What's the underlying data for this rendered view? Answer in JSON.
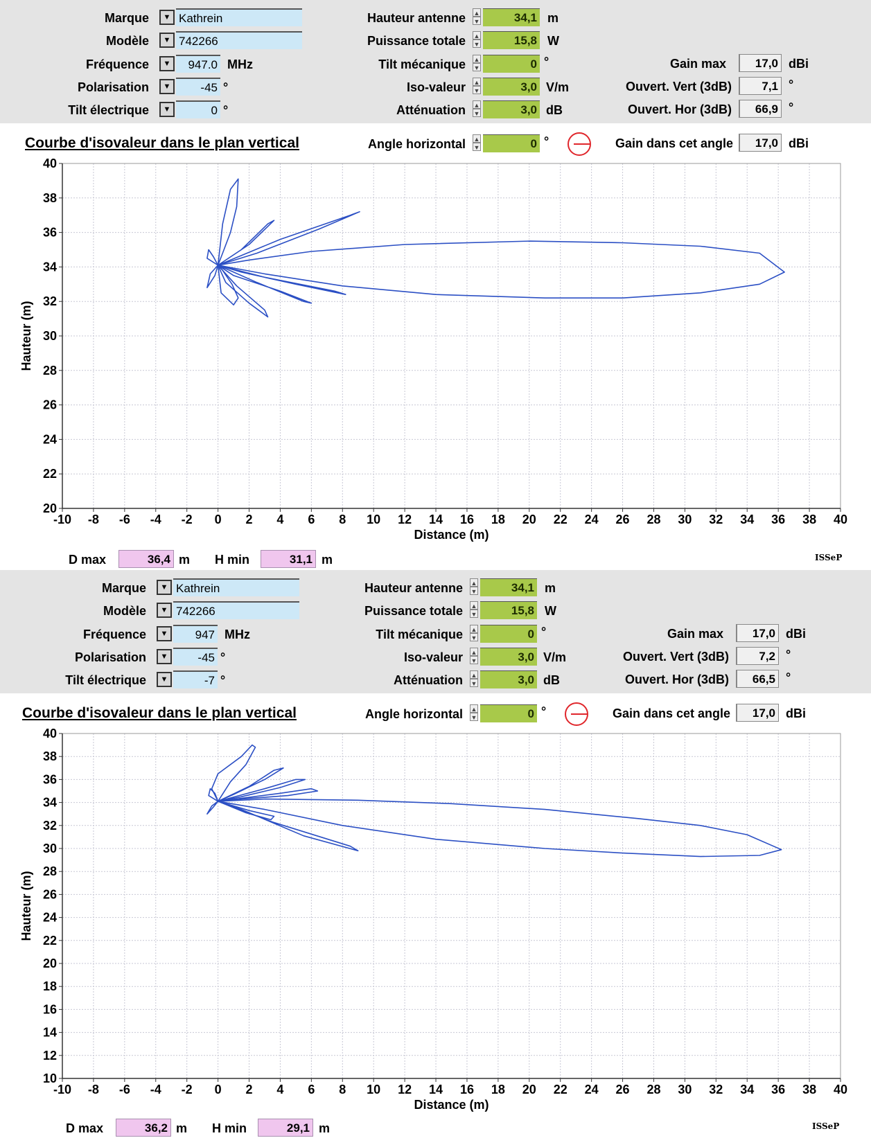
{
  "panels": [
    {
      "inputs": {
        "marque_label": "Marque",
        "marque": "Kathrein",
        "modele_label": "Modèle",
        "modele": "742266",
        "frequence_label": "Fréquence",
        "frequence": "947.0",
        "frequence_unit": "MHz",
        "polarisation_label": "Polarisation",
        "polarisation": "-45",
        "polarisation_unit": "°",
        "tilt_elec_label": "Tilt électrique",
        "tilt_elec": "0",
        "tilt_elec_unit": "°",
        "hauteur_label": "Hauteur antenne",
        "hauteur": "34,1",
        "hauteur_unit": "m",
        "puissance_label": "Puissance totale",
        "puissance": "15,8",
        "puissance_unit": "W",
        "tilt_meca_label": "Tilt mécanique",
        "tilt_meca": "0",
        "tilt_meca_unit": "°",
        "iso_label": "Iso-valeur",
        "iso": "3,0",
        "iso_unit": "V/m",
        "att_label": "Atténuation",
        "att": "3,0",
        "att_unit": "dB",
        "gain_max_label": "Gain max",
        "gain_max": "17,0",
        "gain_max_unit": "dBi",
        "ouv_vert_label": "Ouvert. Vert (3dB)",
        "ouv_vert": "7,1",
        "ouv_vert_unit": "°",
        "ouv_hor_label": "Ouvert. Hor (3dB)",
        "ouv_hor": "66,9",
        "ouv_hor_unit": "°"
      },
      "header": {
        "title": "Courbe d'isovaleur dans le plan vertical",
        "angle_label": "Angle horizontal",
        "angle": "0",
        "angle_unit": "°",
        "gain_angle_label": "Gain dans cet angle",
        "gain_angle": "17,0",
        "gain_angle_unit": "dBi"
      },
      "footer": {
        "dmax_label": "D max",
        "dmax": "36,4",
        "dmax_unit": "m",
        "hmin_label": "H min",
        "hmin": "31,1",
        "hmin_unit": "m",
        "brand": "ISSeP"
      }
    },
    {
      "inputs": {
        "marque_label": "Marque",
        "marque": "Kathrein",
        "modele_label": "Modèle",
        "modele": "742266",
        "frequence_label": "Fréquence",
        "frequence": "947",
        "frequence_unit": "MHz",
        "polarisation_label": "Polarisation",
        "polarisation": "-45",
        "polarisation_unit": "°",
        "tilt_elec_label": "Tilt électrique",
        "tilt_elec": "-7",
        "tilt_elec_unit": "°",
        "hauteur_label": "Hauteur antenne",
        "hauteur": "34,1",
        "hauteur_unit": "m",
        "puissance_label": "Puissance totale",
        "puissance": "15,8",
        "puissance_unit": "W",
        "tilt_meca_label": "Tilt mécanique",
        "tilt_meca": "0",
        "tilt_meca_unit": "°",
        "iso_label": "Iso-valeur",
        "iso": "3,0",
        "iso_unit": "V/m",
        "att_label": "Atténuation",
        "att": "3,0",
        "att_unit": "dB",
        "gain_max_label": "Gain max",
        "gain_max": "17,0",
        "gain_max_unit": "dBi",
        "ouv_vert_label": "Ouvert. Vert (3dB)",
        "ouv_vert": "7,2",
        "ouv_vert_unit": "°",
        "ouv_hor_label": "Ouvert. Hor (3dB)",
        "ouv_hor": "66,5",
        "ouv_hor_unit": "°"
      },
      "header": {
        "title": "Courbe d'isovaleur dans le plan vertical",
        "angle_label": "Angle horizontal",
        "angle": "0",
        "angle_unit": "°",
        "gain_angle_label": "Gain dans cet angle",
        "gain_angle": "17,0",
        "gain_angle_unit": "dBi"
      },
      "footer": {
        "dmax_label": "D max",
        "dmax": "36,2",
        "dmax_unit": "m",
        "hmin_label": "H min",
        "hmin": "29,1",
        "hmin_unit": "m",
        "brand": "ISSeP"
      }
    }
  ],
  "chart_data": [
    {
      "type": "line",
      "title": "",
      "xlabel": "Distance (m)",
      "ylabel": "Hauteur (m)",
      "xlim": [
        -10,
        40
      ],
      "ylim": [
        20,
        40
      ],
      "x_ticks": [
        -10,
        -8,
        -6,
        -4,
        -2,
        0,
        2,
        4,
        6,
        8,
        10,
        12,
        14,
        16,
        18,
        20,
        22,
        24,
        26,
        28,
        30,
        32,
        34,
        36,
        38,
        40
      ],
      "y_ticks": [
        20,
        22,
        24,
        26,
        28,
        30,
        32,
        34,
        36,
        38,
        40
      ],
      "grid": true,
      "line_color": "#2b4fc4",
      "series": [
        {
          "x": [
            0,
            2,
            6,
            12,
            20,
            26,
            31,
            34.8,
            36.4,
            34.8,
            31,
            26,
            21,
            14,
            8,
            3,
            0
          ],
          "y": [
            34.1,
            34.4,
            34.9,
            35.3,
            35.5,
            35.4,
            35.2,
            34.8,
            33.7,
            33.0,
            32.5,
            32.2,
            32.2,
            32.4,
            32.9,
            33.6,
            34.1
          ]
        },
        {
          "x": [
            0,
            0.3,
            0.8,
            1.3,
            1.2,
            0.8,
            0.3,
            0
          ],
          "y": [
            34.1,
            36.5,
            38.5,
            39.1,
            37.5,
            36.0,
            34.8,
            34.1
          ]
        },
        {
          "x": [
            0,
            1.5,
            3.2,
            3.6,
            2.0,
            0
          ],
          "y": [
            34.1,
            35.0,
            36.5,
            36.7,
            35.3,
            34.1
          ]
        },
        {
          "x": [
            0,
            4.0,
            8.5,
            9.1,
            6.5,
            2.5,
            0
          ],
          "y": [
            34.1,
            35.6,
            37.0,
            37.2,
            36.2,
            34.8,
            34.1
          ]
        },
        {
          "x": [
            0,
            3.0,
            7.5,
            8.2,
            5.0,
            1.5,
            0
          ],
          "y": [
            34.1,
            33.4,
            32.6,
            32.4,
            33.0,
            33.7,
            34.1
          ]
        },
        {
          "x": [
            0,
            2.5,
            5.5,
            6.0,
            4.0,
            1.0,
            0
          ],
          "y": [
            34.1,
            33.1,
            32.0,
            31.9,
            32.6,
            33.5,
            34.1
          ]
        },
        {
          "x": [
            0,
            1.2,
            3.0,
            3.2,
            2.0,
            0.5,
            0
          ],
          "y": [
            34.1,
            32.9,
            31.5,
            31.1,
            31.9,
            33.1,
            34.1
          ]
        },
        {
          "x": [
            0,
            0.2,
            1.0,
            1.3,
            0.9,
            0.3,
            0
          ],
          "y": [
            34.1,
            32.5,
            31.8,
            32.2,
            33.0,
            33.8,
            34.1
          ]
        },
        {
          "x": [
            0,
            -0.7,
            -0.6,
            -0.3,
            0,
            -0.2,
            -0.7,
            -0.5,
            0
          ],
          "y": [
            34.1,
            34.5,
            35.0,
            34.6,
            34.1,
            33.5,
            32.8,
            33.6,
            34.1
          ]
        }
      ]
    },
    {
      "type": "line",
      "title": "",
      "xlabel": "Distance (m)",
      "ylabel": "Hauteur (m)",
      "xlim": [
        -10,
        40
      ],
      "ylim": [
        10,
        40
      ],
      "x_ticks": [
        -10,
        -8,
        -6,
        -4,
        -2,
        0,
        2,
        4,
        6,
        8,
        10,
        12,
        14,
        16,
        18,
        20,
        22,
        24,
        26,
        28,
        30,
        32,
        34,
        36,
        38,
        40
      ],
      "y_ticks": [
        10,
        12,
        14,
        16,
        18,
        20,
        22,
        24,
        26,
        28,
        30,
        32,
        34,
        36,
        38,
        40
      ],
      "grid": true,
      "line_color": "#2b4fc4",
      "series": [
        {
          "x": [
            0,
            3,
            9,
            15,
            21,
            27,
            31,
            34,
            36.2,
            34.8,
            31,
            26,
            21,
            14,
            8,
            3,
            0
          ],
          "y": [
            34.1,
            34.3,
            34.2,
            33.9,
            33.4,
            32.6,
            32.0,
            31.2,
            29.9,
            29.4,
            29.3,
            29.6,
            30.0,
            30.8,
            32.0,
            33.4,
            34.1
          ]
        },
        {
          "x": [
            0,
            -0.4,
            0,
            1.5,
            2.2,
            2.4,
            1.8,
            0.8,
            0
          ],
          "y": [
            34.1,
            35.2,
            36.5,
            38.0,
            39.0,
            38.8,
            37.3,
            35.8,
            34.1
          ]
        },
        {
          "x": [
            0,
            2.0,
            3.6,
            4.2,
            3.0,
            1.0,
            0
          ],
          "y": [
            34.1,
            35.4,
            36.8,
            37.0,
            36.0,
            34.7,
            34.1
          ]
        },
        {
          "x": [
            0,
            3.0,
            5.0,
            5.6,
            4.0,
            1.5,
            0
          ],
          "y": [
            34.1,
            35.2,
            36.0,
            36.0,
            35.3,
            34.5,
            34.1
          ]
        },
        {
          "x": [
            0,
            4.0,
            6.0,
            6.4,
            4.5,
            1.5,
            0
          ],
          "y": [
            34.1,
            34.8,
            35.2,
            35.0,
            34.6,
            34.3,
            34.1
          ]
        },
        {
          "x": [
            0,
            3.5,
            8.5,
            9.0,
            5.5,
            1.5,
            0
          ],
          "y": [
            34.1,
            32.3,
            30.2,
            29.8,
            31.1,
            33.4,
            34.1
          ]
        },
        {
          "x": [
            0,
            2.0,
            3.6,
            3.4,
            1.8,
            0
          ],
          "y": [
            34.1,
            33.3,
            32.8,
            32.5,
            33.1,
            34.1
          ]
        },
        {
          "x": [
            0,
            -0.6,
            -0.5,
            -0.2,
            0,
            -0.3,
            -0.7,
            -0.4,
            0
          ],
          "y": [
            34.1,
            34.6,
            35.2,
            34.8,
            34.1,
            33.6,
            33.0,
            33.7,
            34.1
          ]
        }
      ]
    }
  ]
}
